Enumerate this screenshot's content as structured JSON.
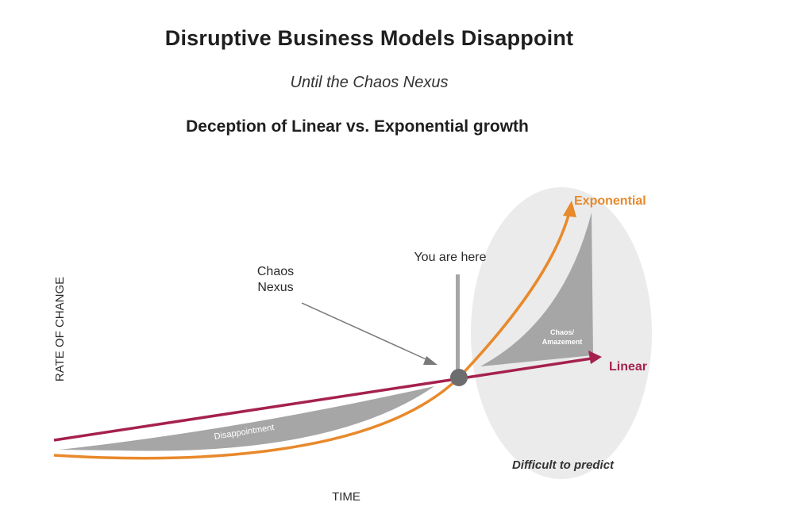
{
  "header": {
    "title": "Disruptive Business Models Disappoint",
    "subtitle": "Until the Chaos Nexus",
    "heading": "Deception of Linear vs. Exponential growth"
  },
  "diagram": {
    "y_axis_label": "RATE OF CHANGE",
    "x_axis_label": "TIME",
    "exponential_label": "Exponential",
    "linear_label": "Linear",
    "chaos_nexus_label_line1": "Chaos",
    "chaos_nexus_label_line2": "Nexus",
    "you_are_here_label": "You are here",
    "disappointment_label": "Disappointment",
    "chaos_amazement_line1": "Chaos/",
    "chaos_amazement_line2": "Amazement",
    "difficult_label": "Difficult to predict"
  },
  "colors": {
    "exponential": "#e8892b",
    "linear": "#a5214e",
    "shaded_area": "#a6a6a6",
    "ellipse": "#ebebeb",
    "nexus_dot": "#6d6d70"
  }
}
